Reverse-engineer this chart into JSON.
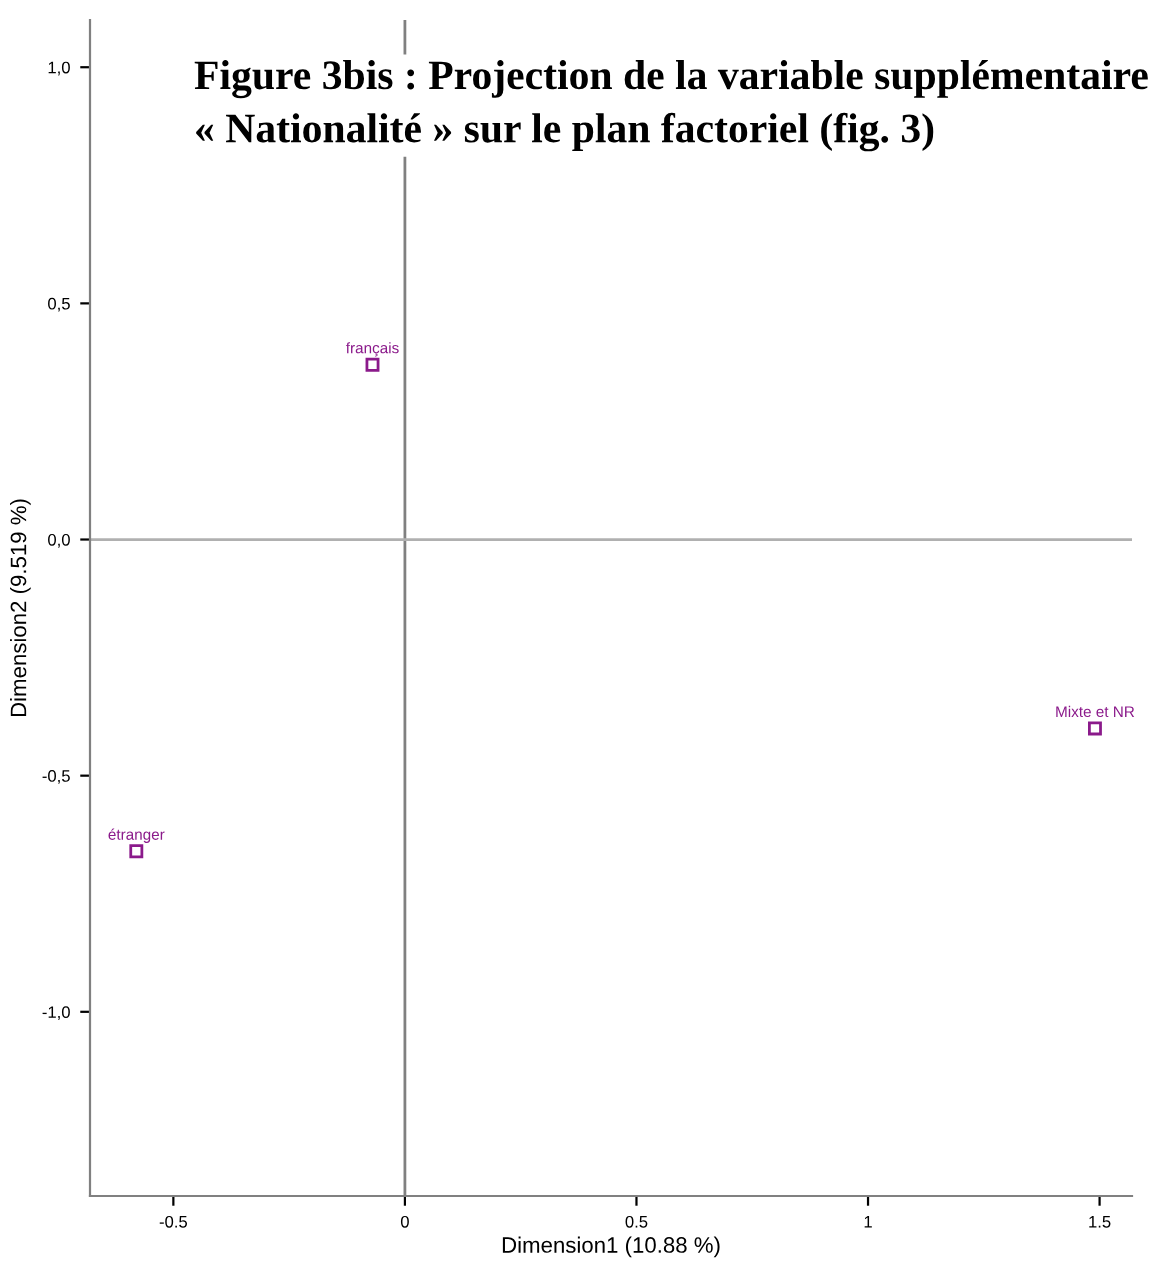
{
  "chart_data": {
    "type": "scatter",
    "title": "Figure 3bis : Projection de la variable supplémentaire « Nationalité » sur le plan factoriel (fig. 3)",
    "xlabel": "Dimension1 (10.88 %)",
    "ylabel": "Dimension2 (9.519 %)",
    "x": [
      -0.07,
      -0.58,
      1.49
    ],
    "series": [
      {
        "color": "#8b1a8b",
        "values": [
          0.37,
          -0.66,
          -0.4
        ]
      }
    ],
    "marker": "square",
    "annotations": [
      {
        "text": "français",
        "x": -0.07,
        "y": 0.37
      },
      {
        "text": "étranger",
        "x": -0.58,
        "y": -0.66
      },
      {
        "text": "Mixte et NR",
        "x": 1.49,
        "y": -0.4
      }
    ],
    "xlim": [
      -0.68,
      1.57
    ],
    "ylim": [
      -1.39,
      1.1
    ],
    "xticks": [
      {
        "value": -0.5,
        "label": "-0.5"
      },
      0,
      {
        "value": 0.5,
        "label": "0.5"
      },
      1,
      {
        "value": 1.5,
        "label": "1.5"
      }
    ],
    "yticks": [
      {
        "value": 1.0,
        "label": "1,0"
      },
      {
        "value": 0.5,
        "label": "0,5"
      },
      {
        "value": 0.0,
        "label": "0,0"
      },
      {
        "value": -0.5,
        "label": "-0,5"
      },
      {
        "value": -1.0,
        "label": "-1,0"
      }
    ],
    "ref_lines": [
      {
        "axis": "x",
        "value": 0,
        "color": "#808080"
      },
      {
        "axis": "y",
        "value": 0,
        "color": "#b0b0b0"
      }
    ],
    "grid": false,
    "legend": false
  }
}
